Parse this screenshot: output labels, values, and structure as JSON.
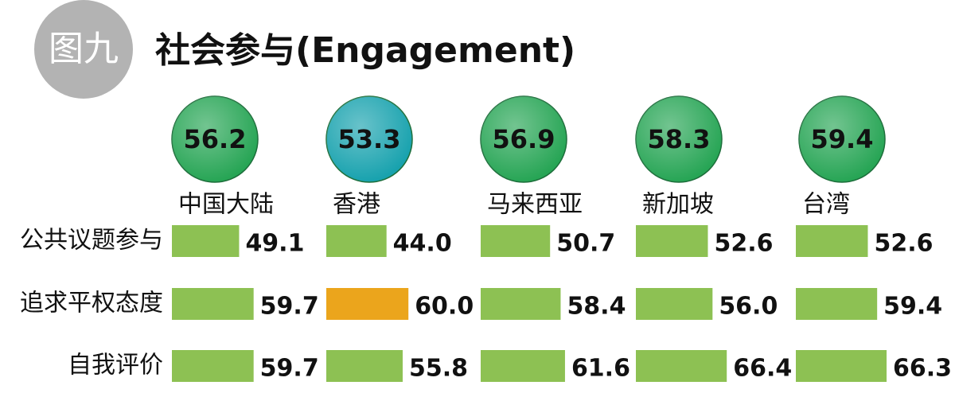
{
  "chart_data": {
    "type": "bar",
    "badge": "图九",
    "title": "社会参与(Engagement)",
    "categories": [
      "公共议题参与",
      "追求平权态度",
      "自我评价"
    ],
    "xlim": [
      0,
      100
    ],
    "series": [
      {
        "name": "中国大陆",
        "overall": 56.2,
        "overall_color": "#27a555",
        "values": [
          49.1,
          59.7,
          59.7
        ],
        "colors": [
          "#8dc153",
          "#8dc153",
          "#8dc153"
        ]
      },
      {
        "name": "香港",
        "overall": 53.3,
        "overall_color": "#18a2ae",
        "values": [
          44.0,
          60.0,
          55.8
        ],
        "value_labels": [
          "44.0",
          "60.0",
          "55.8"
        ],
        "colors": [
          "#8dc153",
          "#eba51c",
          "#8dc153"
        ]
      },
      {
        "name": "马来西亚",
        "overall": 56.9,
        "overall_color": "#27a555",
        "values": [
          50.7,
          58.4,
          61.6
        ],
        "colors": [
          "#8dc153",
          "#8dc153",
          "#8dc153"
        ]
      },
      {
        "name": "新加坡",
        "overall": 58.3,
        "overall_color": "#27a555",
        "values": [
          52.6,
          56.0,
          66.4
        ],
        "value_labels": [
          "52.6",
          "56.0",
          "66.4"
        ],
        "colors": [
          "#8dc153",
          "#8dc153",
          "#8dc153"
        ]
      },
      {
        "name": "台湾",
        "overall": 59.4,
        "overall_color": "#27a555",
        "values": [
          52.6,
          59.4,
          66.3
        ],
        "colors": [
          "#8dc153",
          "#8dc153",
          "#8dc153"
        ]
      }
    ]
  }
}
